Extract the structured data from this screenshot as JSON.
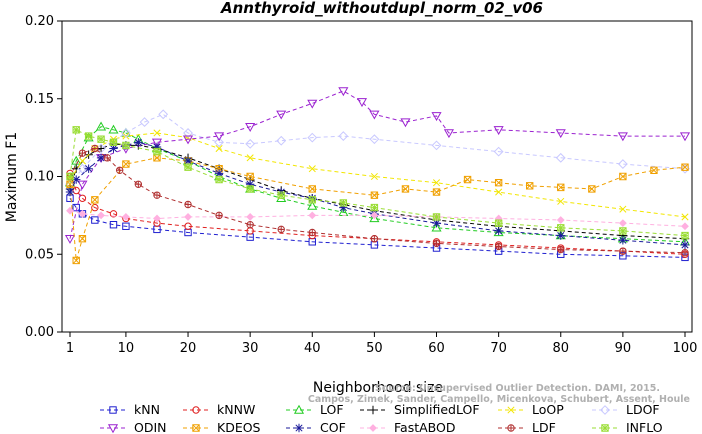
{
  "chart_data": {
    "type": "line",
    "title": "Annthyroid_withoutdupl_norm_02_v06",
    "xlabel": "Neighborhood size",
    "ylabel": "Maximum F1",
    "xlim": [
      1,
      100
    ],
    "ylim": [
      0.0,
      0.2
    ],
    "xticks": [
      "1",
      "10",
      "20",
      "30",
      "40",
      "50",
      "60",
      "70",
      "80",
      "90",
      "100"
    ],
    "yticks": [
      "0.00",
      "0.05",
      "0.10",
      "0.15",
      "0.20"
    ],
    "grid": false,
    "legend_position": "bottom",
    "watermark_lines": [
      "Source: Unsupervised Outlier Detection. DAMI, 2015.",
      "Campos, Zimek, Sander, Campello, Micenkova, Schubert, Assent, Houle"
    ],
    "series": [
      {
        "name": "kNN",
        "color": "#1f1fd0",
        "marker": "square",
        "points": [
          [
            1,
            0.086
          ],
          [
            2,
            0.08
          ],
          [
            3,
            0.076
          ],
          [
            5,
            0.072
          ],
          [
            8,
            0.069
          ],
          [
            10,
            0.068
          ],
          [
            15,
            0.066
          ],
          [
            20,
            0.064
          ],
          [
            30,
            0.061
          ],
          [
            40,
            0.058
          ],
          [
            50,
            0.056
          ],
          [
            60,
            0.054
          ],
          [
            70,
            0.052
          ],
          [
            80,
            0.05
          ],
          [
            90,
            0.049
          ],
          [
            100,
            0.048
          ]
        ]
      },
      {
        "name": "kNNW",
        "color": "#e02020",
        "marker": "circle",
        "points": [
          [
            1,
            0.102
          ],
          [
            2,
            0.091
          ],
          [
            3,
            0.086
          ],
          [
            5,
            0.08
          ],
          [
            8,
            0.076
          ],
          [
            10,
            0.073
          ],
          [
            15,
            0.07
          ],
          [
            20,
            0.068
          ],
          [
            30,
            0.065
          ],
          [
            40,
            0.062
          ],
          [
            50,
            0.06
          ],
          [
            60,
            0.058
          ],
          [
            70,
            0.056
          ],
          [
            80,
            0.054
          ],
          [
            90,
            0.052
          ],
          [
            100,
            0.05
          ]
        ]
      },
      {
        "name": "LOF",
        "color": "#22cc22",
        "marker": "triangle",
        "points": [
          [
            1,
            0.096
          ],
          [
            2,
            0.11
          ],
          [
            4,
            0.125
          ],
          [
            6,
            0.132
          ],
          [
            8,
            0.13
          ],
          [
            10,
            0.128
          ],
          [
            12,
            0.124
          ],
          [
            15,
            0.118
          ],
          [
            20,
            0.11
          ],
          [
            25,
            0.1
          ],
          [
            30,
            0.092
          ],
          [
            35,
            0.086
          ],
          [
            40,
            0.081
          ],
          [
            45,
            0.077
          ],
          [
            50,
            0.073
          ],
          [
            60,
            0.067
          ],
          [
            70,
            0.064
          ],
          [
            80,
            0.062
          ],
          [
            90,
            0.06
          ],
          [
            100,
            0.058
          ]
        ]
      },
      {
        "name": "SimplifiedLOF",
        "color": "#000000",
        "marker": "plus",
        "points": [
          [
            1,
            0.092
          ],
          [
            2,
            0.105
          ],
          [
            4,
            0.114
          ],
          [
            6,
            0.118
          ],
          [
            8,
            0.121
          ],
          [
            10,
            0.12
          ],
          [
            12,
            0.12
          ],
          [
            15,
            0.118
          ],
          [
            20,
            0.112
          ],
          [
            25,
            0.105
          ],
          [
            30,
            0.098
          ],
          [
            35,
            0.091
          ],
          [
            40,
            0.086
          ],
          [
            45,
            0.082
          ],
          [
            50,
            0.078
          ],
          [
            60,
            0.072
          ],
          [
            70,
            0.068
          ],
          [
            80,
            0.065
          ],
          [
            90,
            0.062
          ],
          [
            100,
            0.06
          ]
        ]
      },
      {
        "name": "LoOP",
        "color": "#f2e600",
        "marker": "x",
        "points": [
          [
            1,
            0.098
          ],
          [
            3,
            0.11
          ],
          [
            5,
            0.118
          ],
          [
            8,
            0.124
          ],
          [
            10,
            0.126
          ],
          [
            15,
            0.128
          ],
          [
            20,
            0.125
          ],
          [
            25,
            0.118
          ],
          [
            30,
            0.112
          ],
          [
            40,
            0.105
          ],
          [
            50,
            0.1
          ],
          [
            60,
            0.096
          ],
          [
            70,
            0.09
          ],
          [
            80,
            0.084
          ],
          [
            90,
            0.079
          ],
          [
            100,
            0.074
          ]
        ]
      },
      {
        "name": "LDOF",
        "color": "#c8c8ff",
        "marker": "diamond",
        "points": [
          [
            1,
            0.095
          ],
          [
            3,
            0.105
          ],
          [
            6,
            0.118
          ],
          [
            10,
            0.128
          ],
          [
            13,
            0.135
          ],
          [
            16,
            0.14
          ],
          [
            20,
            0.128
          ],
          [
            25,
            0.122
          ],
          [
            30,
            0.121
          ],
          [
            35,
            0.123
          ],
          [
            40,
            0.125
          ],
          [
            45,
            0.126
          ],
          [
            50,
            0.124
          ],
          [
            60,
            0.12
          ],
          [
            70,
            0.116
          ],
          [
            80,
            0.112
          ],
          [
            90,
            0.108
          ],
          [
            100,
            0.105
          ]
        ]
      },
      {
        "name": "ODIN",
        "color": "#9b22d0",
        "marker": "triangle-down",
        "points": [
          [
            1,
            0.06
          ],
          [
            3,
            0.095
          ],
          [
            6,
            0.112
          ],
          [
            10,
            0.118
          ],
          [
            15,
            0.122
          ],
          [
            20,
            0.124
          ],
          [
            25,
            0.126
          ],
          [
            30,
            0.132
          ],
          [
            35,
            0.14
          ],
          [
            40,
            0.147
          ],
          [
            45,
            0.155
          ],
          [
            48,
            0.148
          ],
          [
            50,
            0.14
          ],
          [
            55,
            0.135
          ],
          [
            60,
            0.139
          ],
          [
            62,
            0.128
          ],
          [
            70,
            0.13
          ],
          [
            80,
            0.128
          ],
          [
            90,
            0.126
          ],
          [
            100,
            0.126
          ]
        ]
      },
      {
        "name": "KDEOS",
        "color": "#f0a000",
        "marker": "square-x",
        "points": [
          [
            1,
            0.095
          ],
          [
            2,
            0.046
          ],
          [
            3,
            0.06
          ],
          [
            5,
            0.085
          ],
          [
            10,
            0.108
          ],
          [
            15,
            0.112
          ],
          [
            20,
            0.11
          ],
          [
            25,
            0.105
          ],
          [
            30,
            0.1
          ],
          [
            40,
            0.092
          ],
          [
            50,
            0.088
          ],
          [
            55,
            0.092
          ],
          [
            60,
            0.09
          ],
          [
            65,
            0.098
          ],
          [
            70,
            0.096
          ],
          [
            75,
            0.094
          ],
          [
            80,
            0.093
          ],
          [
            85,
            0.092
          ],
          [
            90,
            0.1
          ],
          [
            95,
            0.104
          ],
          [
            100,
            0.106
          ]
        ]
      },
      {
        "name": "COF",
        "color": "#1a1a9a",
        "marker": "star",
        "points": [
          [
            1,
            0.09
          ],
          [
            2,
            0.098
          ],
          [
            4,
            0.105
          ],
          [
            6,
            0.112
          ],
          [
            8,
            0.118
          ],
          [
            10,
            0.12
          ],
          [
            12,
            0.122
          ],
          [
            15,
            0.119
          ],
          [
            20,
            0.11
          ],
          [
            25,
            0.102
          ],
          [
            30,
            0.095
          ],
          [
            35,
            0.09
          ],
          [
            40,
            0.086
          ],
          [
            45,
            0.08
          ],
          [
            50,
            0.076
          ],
          [
            60,
            0.07
          ],
          [
            70,
            0.065
          ],
          [
            80,
            0.062
          ],
          [
            90,
            0.059
          ],
          [
            100,
            0.056
          ]
        ]
      },
      {
        "name": "FastABOD",
        "color": "#ffb0e0",
        "marker": "diamond-filled",
        "points": [
          [
            1,
            0.078
          ],
          [
            3,
            0.076
          ],
          [
            6,
            0.075
          ],
          [
            10,
            0.074
          ],
          [
            15,
            0.073
          ],
          [
            20,
            0.074
          ],
          [
            30,
            0.074
          ],
          [
            40,
            0.075
          ],
          [
            50,
            0.075
          ],
          [
            60,
            0.074
          ],
          [
            70,
            0.073
          ],
          [
            80,
            0.072
          ],
          [
            90,
            0.07
          ],
          [
            100,
            0.068
          ]
        ]
      },
      {
        "name": "LDF",
        "color": "#b03030",
        "marker": "circle-plus",
        "points": [
          [
            1,
            0.1
          ],
          [
            3,
            0.115
          ],
          [
            5,
            0.118
          ],
          [
            7,
            0.112
          ],
          [
            9,
            0.104
          ],
          [
            12,
            0.095
          ],
          [
            15,
            0.088
          ],
          [
            20,
            0.082
          ],
          [
            25,
            0.075
          ],
          [
            30,
            0.069
          ],
          [
            35,
            0.066
          ],
          [
            40,
            0.064
          ],
          [
            50,
            0.06
          ],
          [
            60,
            0.057
          ],
          [
            70,
            0.055
          ],
          [
            80,
            0.053
          ],
          [
            90,
            0.052
          ],
          [
            100,
            0.051
          ]
        ]
      },
      {
        "name": "INFLO",
        "color": "#99dd33",
        "marker": "square-star",
        "points": [
          [
            1,
            0.1
          ],
          [
            2,
            0.13
          ],
          [
            4,
            0.126
          ],
          [
            6,
            0.124
          ],
          [
            8,
            0.122
          ],
          [
            10,
            0.12
          ],
          [
            15,
            0.116
          ],
          [
            20,
            0.106
          ],
          [
            25,
            0.098
          ],
          [
            30,
            0.092
          ],
          [
            35,
            0.088
          ],
          [
            40,
            0.085
          ],
          [
            45,
            0.083
          ],
          [
            50,
            0.08
          ],
          [
            60,
            0.074
          ],
          [
            70,
            0.07
          ],
          [
            80,
            0.067
          ],
          [
            90,
            0.065
          ],
          [
            100,
            0.062
          ]
        ]
      }
    ]
  }
}
